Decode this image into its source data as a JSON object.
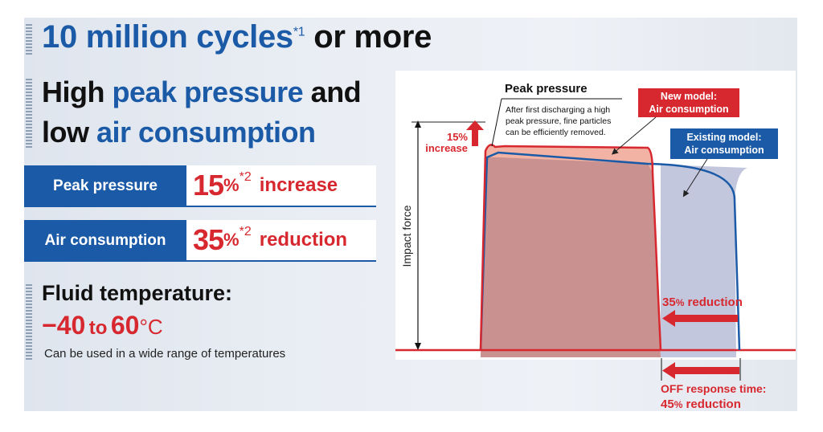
{
  "headline": {
    "main": "10 million cycles",
    "note": "*1",
    "tail": "or more"
  },
  "subheading": {
    "w1": "High",
    "w2": "peak pressure",
    "w3": "and",
    "w4": "low",
    "w5": "air consumption"
  },
  "metrics": [
    {
      "label": "Peak pressure",
      "value": "15",
      "unit": "%",
      "note": "*2",
      "word": "increase"
    },
    {
      "label": "Air consumption",
      "value": "35",
      "unit": "%",
      "note": "*2",
      "word": "reduction"
    }
  ],
  "fluid": {
    "title": "Fluid temperature:",
    "range_from": "−40",
    "range_to_word": "to",
    "range_to": "60",
    "unit": "°C",
    "note": "Can be used in a wide range of temperatures"
  },
  "diagram": {
    "y_axis_label": "Impact force",
    "peak_title": "Peak pressure",
    "peak_desc": [
      "After first discharging a high",
      "peak pressure, fine particles",
      "can be efficiently removed."
    ],
    "increase_pct": "15%",
    "increase_word": "increase",
    "new_model_label": [
      "New model:",
      "Air consumption"
    ],
    "existing_model_label": [
      "Existing model:",
      "Air consumption"
    ],
    "air_reduction": {
      "value": "35",
      "unit": "%",
      "word": " reduction"
    },
    "off_response": {
      "line1": "OFF response time:",
      "value": "45",
      "unit": "%",
      "word": " reduction"
    }
  },
  "colors": {
    "red": "#d7282f",
    "blue": "#1a5aa6",
    "red_fill": "#f2b3a5",
    "blue_fill": "#c3c7de"
  }
}
